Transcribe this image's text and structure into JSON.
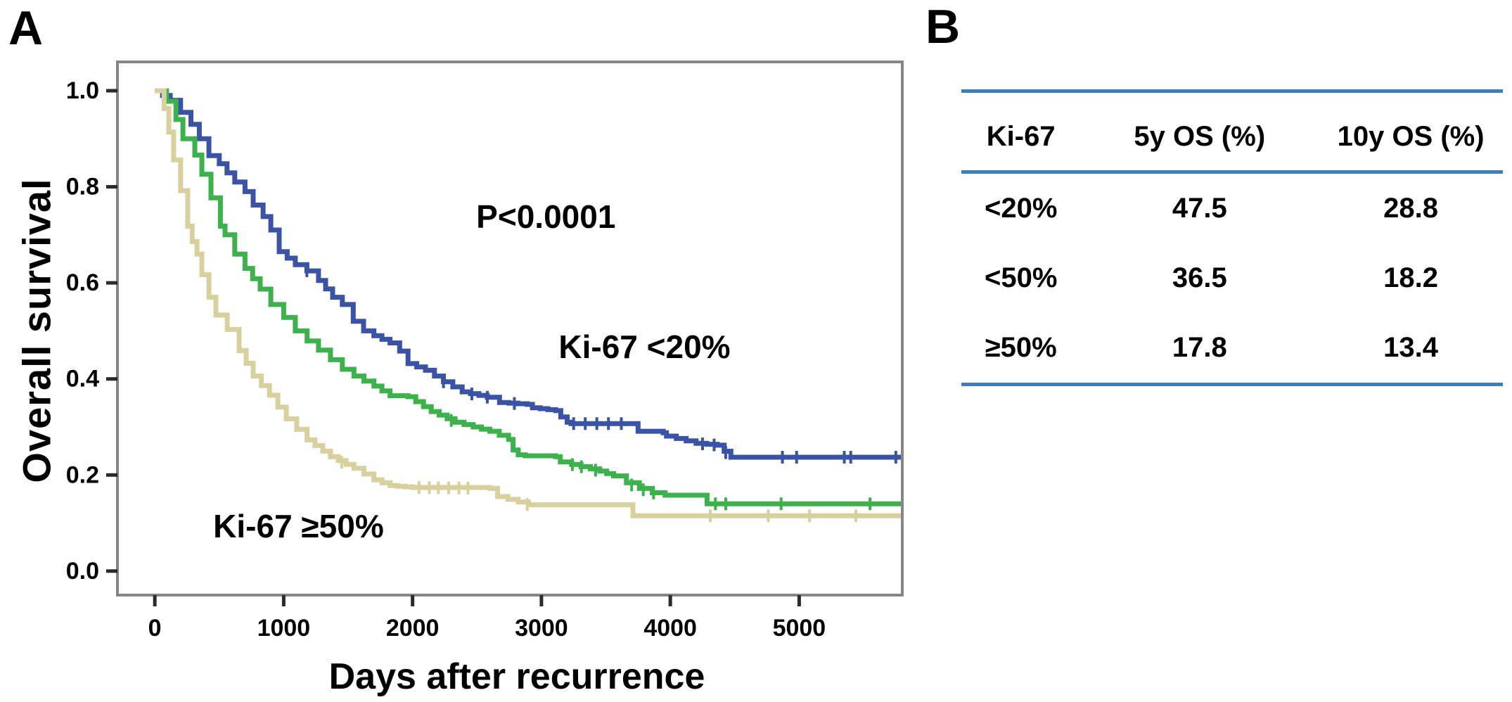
{
  "panel_a": {
    "label": "A"
  },
  "panel_b": {
    "label": "B"
  },
  "chart_data": {
    "type": "line",
    "subtype": "kaplan-meier-step",
    "title": "",
    "xlabel": "Days after recurrence",
    "ylabel": "Overall survival",
    "xlim": [
      -290,
      5800
    ],
    "ylim": [
      -0.05,
      1.06
    ],
    "grid": false,
    "legend_position": "direct-curve-labels",
    "x_ticks": [
      {
        "value": 0,
        "label": "0"
      },
      {
        "value": 1000,
        "label": "1000"
      },
      {
        "value": 2000,
        "label": "2000"
      },
      {
        "value": 3000,
        "label": "3000"
      },
      {
        "value": 4000,
        "label": "4000"
      },
      {
        "value": 5000,
        "label": "5000"
      }
    ],
    "y_ticks": [
      {
        "value": 0.0,
        "label": "0.0"
      },
      {
        "value": 0.2,
        "label": "0.2"
      },
      {
        "value": 0.4,
        "label": "0.4"
      },
      {
        "value": 0.6,
        "label": "0.6"
      },
      {
        "value": 0.8,
        "label": "0.8"
      },
      {
        "value": 1.0,
        "label": "1.0"
      }
    ],
    "annotations": [
      {
        "text": "P<0.0001",
        "day": 3035,
        "surv": 0.738
      },
      {
        "text": "Ki-67 <20%",
        "day": 3800,
        "surv": 0.467
      },
      {
        "text": "Ki-67 ≥50%",
        "day": 1115,
        "surv": 0.094
      }
    ],
    "axis_colors": {
      "box": "#868686",
      "tick": "#2b2b2b",
      "label": "#000000"
    },
    "series": [
      {
        "name": "Ki-67 <20%",
        "color": "#3a53a4",
        "points": [
          [
            0,
            1
          ],
          [
            120,
            0.98
          ],
          [
            200,
            0.955
          ],
          [
            280,
            0.93
          ],
          [
            345,
            0.9
          ],
          [
            420,
            0.865
          ],
          [
            500,
            0.848
          ],
          [
            620,
            0.81
          ],
          [
            700,
            0.79
          ],
          [
            763,
            0.762
          ],
          [
            840,
            0.738
          ],
          [
            900,
            0.71
          ],
          [
            965,
            0.665
          ],
          [
            1090,
            0.638
          ],
          [
            1180,
            0.625
          ],
          [
            1270,
            0.605
          ],
          [
            1380,
            0.57
          ],
          [
            1455,
            0.555
          ],
          [
            1540,
            0.52
          ],
          [
            1620,
            0.5
          ],
          [
            1700,
            0.49
          ],
          [
            1825,
            0.475
          ],
          [
            1900,
            0.458
          ],
          [
            1965,
            0.432
          ],
          [
            2100,
            0.418
          ],
          [
            2240,
            0.394
          ],
          [
            2385,
            0.373
          ],
          [
            2580,
            0.362
          ],
          [
            2675,
            0.351
          ],
          [
            2890,
            0.347
          ],
          [
            2930,
            0.34
          ],
          [
            3110,
            0.334
          ],
          [
            3150,
            0.321
          ],
          [
            3200,
            0.31
          ],
          [
            3230,
            0.307
          ],
          [
            3710,
            0.307
          ],
          [
            3750,
            0.291
          ],
          [
            3945,
            0.288
          ],
          [
            3970,
            0.281
          ],
          [
            4200,
            0.266
          ],
          [
            4365,
            0.262
          ],
          [
            4470,
            0.237
          ],
          [
            5797,
            0.237
          ]
        ],
        "censor_days": [
          1180,
          2240,
          2460,
          2580,
          2790,
          3250,
          3340,
          3430,
          3520,
          3620,
          4250,
          4340,
          4430,
          4870,
          4980,
          5350,
          5400,
          5750
        ],
        "os_5y_pct": 47.5,
        "os_10y_pct": 28.8
      },
      {
        "name": "Ki-67 <50%",
        "color": "#3db14c",
        "points": [
          [
            0,
            1
          ],
          [
            91,
            0.978
          ],
          [
            164,
            0.94
          ],
          [
            218,
            0.9
          ],
          [
            310,
            0.866
          ],
          [
            365,
            0.826
          ],
          [
            436,
            0.777
          ],
          [
            509,
            0.718
          ],
          [
            545,
            0.7
          ],
          [
            620,
            0.66
          ],
          [
            700,
            0.63
          ],
          [
            818,
            0.587
          ],
          [
            900,
            0.555
          ],
          [
            1000,
            0.528
          ],
          [
            1090,
            0.5
          ],
          [
            1182,
            0.479
          ],
          [
            1270,
            0.46
          ],
          [
            1363,
            0.44
          ],
          [
            1455,
            0.42
          ],
          [
            1545,
            0.406
          ],
          [
            1700,
            0.385
          ],
          [
            1825,
            0.365
          ],
          [
            1965,
            0.363
          ],
          [
            2145,
            0.332
          ],
          [
            2330,
            0.31
          ],
          [
            2470,
            0.3
          ],
          [
            2600,
            0.291
          ],
          [
            2745,
            0.274
          ],
          [
            2780,
            0.252
          ],
          [
            2820,
            0.242
          ],
          [
            2875,
            0.24
          ],
          [
            3110,
            0.238
          ],
          [
            3147,
            0.227
          ],
          [
            3234,
            0.222
          ],
          [
            3453,
            0.208
          ],
          [
            3560,
            0.198
          ],
          [
            3660,
            0.184
          ],
          [
            3760,
            0.172
          ],
          [
            3860,
            0.163
          ],
          [
            3960,
            0.158
          ],
          [
            4275,
            0.158
          ],
          [
            4285,
            0.14
          ],
          [
            5797,
            0.14
          ]
        ],
        "censor_days": [
          2300,
          3240,
          3310,
          3420,
          3700,
          3790,
          3870,
          4350,
          4430,
          4860,
          5550
        ],
        "os_5y_pct": 36.5,
        "os_10y_pct": 18.2
      },
      {
        "name": "Ki-67 ≥50%",
        "color": "#d8d09d",
        "points": [
          [
            0,
            1
          ],
          [
            72,
            0.963
          ],
          [
            109,
            0.914
          ],
          [
            146,
            0.856
          ],
          [
            200,
            0.792
          ],
          [
            255,
            0.718
          ],
          [
            290,
            0.686
          ],
          [
            327,
            0.66
          ],
          [
            365,
            0.617
          ],
          [
            420,
            0.57
          ],
          [
            474,
            0.533
          ],
          [
            562,
            0.503
          ],
          [
            654,
            0.459
          ],
          [
            763,
            0.406
          ],
          [
            890,
            0.366
          ],
          [
            1020,
            0.317
          ],
          [
            1182,
            0.273
          ],
          [
            1363,
            0.238
          ],
          [
            1545,
            0.214
          ],
          [
            1700,
            0.19
          ],
          [
            1825,
            0.178
          ],
          [
            2000,
            0.174
          ],
          [
            2600,
            0.172
          ],
          [
            2660,
            0.155
          ],
          [
            2900,
            0.138
          ],
          [
            3690,
            0.138
          ],
          [
            3710,
            0.115
          ],
          [
            5797,
            0.115
          ]
        ],
        "censor_days": [
          1450,
          2050,
          2130,
          2200,
          2280,
          2360,
          2430,
          2890,
          4310,
          4760,
          5080,
          5440
        ],
        "os_5y_pct": 17.8,
        "os_10y_pct": 13.4
      }
    ]
  },
  "table": {
    "columns": [
      "Ki-67",
      "5y OS (%)",
      "10y OS (%)"
    ],
    "rows": [
      [
        "<20%",
        "47.5",
        "28.8"
      ],
      [
        "<50%",
        "36.5",
        "18.2"
      ],
      [
        "≥50%",
        "17.8",
        "13.4"
      ]
    ],
    "rule_color": "#3b7dbe"
  }
}
